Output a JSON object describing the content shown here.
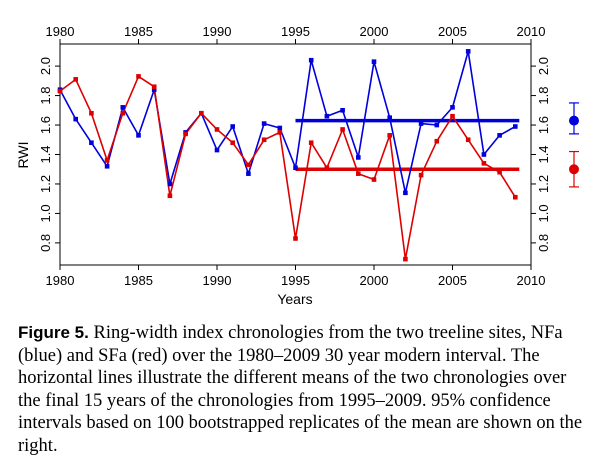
{
  "chart_data": {
    "type": "line",
    "xlabel": "Years",
    "ylabel": "RWI",
    "xlim": [
      1980,
      2010
    ],
    "ylim": [
      0.65,
      2.15
    ],
    "x_ticks": [
      "1980",
      "1985",
      "1990",
      "1995",
      "2000",
      "2005",
      "2010"
    ],
    "y_ticks": [
      "0.8",
      "1.0",
      "1.2",
      "1.4",
      "1.6",
      "1.8",
      "2.0"
    ],
    "x": [
      1980,
      1981,
      1982,
      1983,
      1984,
      1985,
      1986,
      1987,
      1988,
      1989,
      1990,
      1991,
      1992,
      1993,
      1994,
      1995,
      1996,
      1997,
      1998,
      1999,
      2000,
      2001,
      2002,
      2003,
      2004,
      2005,
      2006,
      2007,
      2008,
      2009
    ],
    "series": [
      {
        "name": "NFa",
        "color": "#0000dd",
        "values": [
          1.84,
          1.64,
          1.48,
          1.32,
          1.72,
          1.53,
          1.84,
          1.2,
          1.55,
          1.68,
          1.43,
          1.59,
          1.27,
          1.61,
          1.58,
          1.31,
          2.04,
          1.66,
          1.7,
          1.38,
          2.03,
          1.65,
          1.14,
          1.61,
          1.6,
          1.72,
          2.1,
          1.4,
          1.53,
          1.59
        ],
        "mean": {
          "from": 1995,
          "to": 2009,
          "value": 1.63
        },
        "ci": [
          1.54,
          1.75
        ]
      },
      {
        "name": "SFa",
        "color": "#dd0000",
        "values": [
          1.83,
          1.91,
          1.68,
          1.36,
          1.68,
          1.93,
          1.86,
          1.12,
          1.54,
          1.68,
          1.57,
          1.48,
          1.33,
          1.5,
          1.55,
          0.83,
          1.48,
          1.31,
          1.57,
          1.27,
          1.23,
          1.53,
          0.69,
          1.26,
          1.49,
          1.66,
          1.5,
          1.34,
          1.28,
          1.11
        ],
        "mean": {
          "from": 1995,
          "to": 2009,
          "value": 1.3
        },
        "ci": [
          1.18,
          1.42
        ]
      }
    ]
  },
  "caption": {
    "label": "Figure 5.",
    "text": "Ring-width index chronologies from the two treeline sites, NFa (blue) and SFa (red) over the 1980–2009 30 year modern interval. The horizontal lines illustrate the different means of the two chronologies over the final 15 years of the chronologies from 1995–2009. 95% confidence intervals based on 100 bootstrapped replicates of the mean are shown on the right."
  }
}
